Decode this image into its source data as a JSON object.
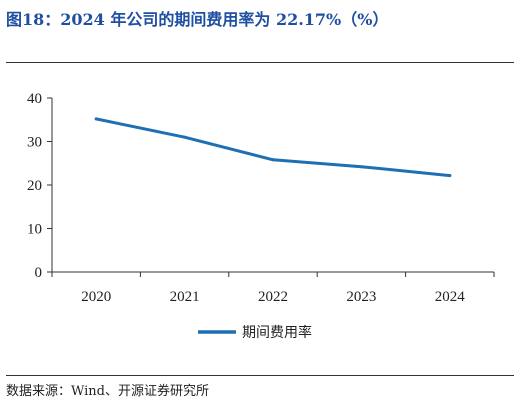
{
  "header": {
    "title": "图18：2024 年公司的期间费用率为 22.17%（%）"
  },
  "footer": {
    "source": "数据来源：Wind、开源证券研究所"
  },
  "colors": {
    "title": "#1f4fa1",
    "series": "#1f6fb4",
    "axis": "#333333",
    "text": "#222222"
  },
  "chart_data": {
    "type": "line",
    "title": "",
    "xlabel": "",
    "ylabel": "",
    "x": [
      "2020",
      "2021",
      "2022",
      "2023",
      "2024"
    ],
    "series": [
      {
        "name": "期间费用率",
        "values": [
          35.2,
          31.0,
          25.8,
          24.2,
          22.17
        ]
      }
    ],
    "ylim": [
      0,
      40
    ],
    "yticks": [
      0,
      10,
      20,
      30,
      40
    ],
    "grid": false,
    "legend": "bottom-center"
  }
}
